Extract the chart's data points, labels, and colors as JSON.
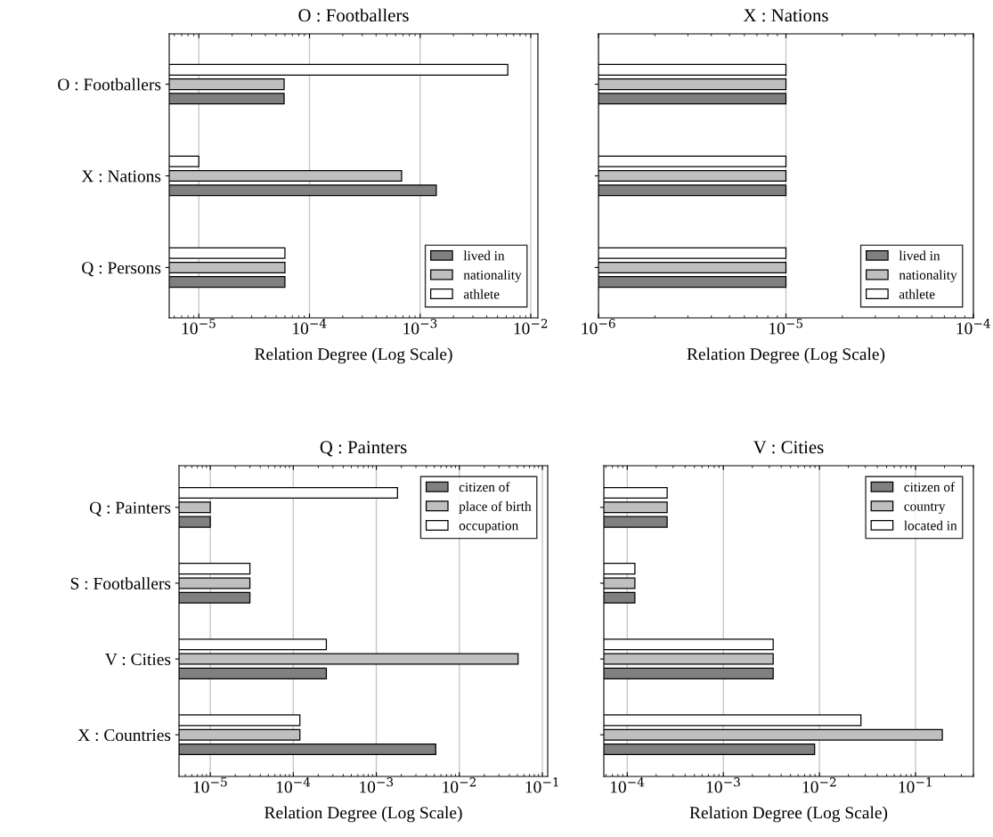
{
  "chart_data": [
    {
      "type": "bar",
      "orientation": "horizontal",
      "title": "O : Footballers",
      "xlabel": "Relation Degree (Log Scale)",
      "log": "x",
      "grid": "x",
      "legend": "bottom right",
      "categories": [
        "O : Footballers",
        "X : Nations",
        "Q : Persons"
      ],
      "xlim": [
        5.4e-06,
        0.0116
      ],
      "xticks": [
        {
          "value": 1e-05,
          "label": "10$^{−5}$"
        },
        {
          "value": 0.0001,
          "label": "10$^{−4}$"
        },
        {
          "value": 0.001,
          "label": "10$^{−3}$"
        },
        {
          "value": 0.01,
          "label": "10$^{−2}$"
        }
      ],
      "series": [
        {
          "name": "lived in",
          "color": "#808080",
          "values": [
            5.9e-05,
            0.0014,
            6e-05
          ]
        },
        {
          "name": "nationality",
          "color": "#bfbfbf",
          "values": [
            5.9e-05,
            0.00068,
            6e-05
          ]
        },
        {
          "name": "athlete",
          "color": "#ffffff",
          "values": [
            0.0062,
            1e-05,
            6e-05
          ]
        }
      ]
    },
    {
      "type": "bar",
      "orientation": "horizontal",
      "title": "X : Nations",
      "xlabel": "Relation Degree (Log Scale)",
      "log": "x",
      "grid": "x",
      "legend": "bottom right",
      "categories": [
        null,
        null,
        null
      ],
      "xlim": [
        1e-06,
        0.0001
      ],
      "xticks": [
        {
          "value": 1e-06,
          "label": "10$^{−6}$"
        },
        {
          "value": 1e-05,
          "label": "10$^{−5}$"
        },
        {
          "value": 0.0001,
          "label": "10$^{−4}$"
        }
      ],
      "series": [
        {
          "name": "lived in",
          "color": "#808080",
          "values": [
            1e-05,
            1e-05,
            1e-05
          ]
        },
        {
          "name": "nationality",
          "color": "#bfbfbf",
          "values": [
            1e-05,
            1e-05,
            1e-05
          ]
        },
        {
          "name": "athlete",
          "color": "#ffffff",
          "values": [
            1e-05,
            1e-05,
            1e-05
          ]
        }
      ]
    },
    {
      "type": "bar",
      "orientation": "horizontal",
      "title": "Q : Painters",
      "xlabel": "Relation Degree (Log Scale)",
      "log": "x",
      "grid": "x",
      "legend": "top right",
      "categories": [
        "Q : Painters",
        "S : Footballers",
        "V : Cities",
        "X : Countries"
      ],
      "xlim": [
        4.2e-06,
        0.116
      ],
      "xticks": [
        {
          "value": 1e-05,
          "label": "10$^{−5}$"
        },
        {
          "value": 0.0001,
          "label": "10$^{−4}$"
        },
        {
          "value": 0.001,
          "label": "10$^{−3}$"
        },
        {
          "value": 0.01,
          "label": "10$^{−2}$"
        },
        {
          "value": 0.1,
          "label": "10$^{−1}$"
        }
      ],
      "series": [
        {
          "name": "citizen of",
          "color": "#808080",
          "values": [
            1e-05,
            3e-05,
            0.00025,
            0.0052
          ]
        },
        {
          "name": "place of birth",
          "color": "#bfbfbf",
          "values": [
            1e-05,
            3e-05,
            0.051,
            0.00012
          ]
        },
        {
          "name": "occupation",
          "color": "#ffffff",
          "values": [
            0.0018,
            3e-05,
            0.00025,
            0.00012
          ]
        }
      ]
    },
    {
      "type": "bar",
      "orientation": "horizontal",
      "title": "V : Cities",
      "xlabel": "Relation Degree (Log Scale)",
      "log": "x",
      "grid": "x",
      "legend": "top right",
      "categories": [
        null,
        null,
        null,
        null
      ],
      "xlim": [
        5.7e-05,
        0.4
      ],
      "xticks": [
        {
          "value": 0.0001,
          "label": "10$^{−4}$"
        },
        {
          "value": 0.001,
          "label": "10$^{−3}$"
        },
        {
          "value": 0.01,
          "label": "10$^{−2}$"
        },
        {
          "value": 0.1,
          "label": "10$^{−1}$"
        }
      ],
      "series": [
        {
          "name": "citizen of",
          "color": "#808080",
          "values": [
            0.00026,
            0.00012,
            0.0033,
            0.0089
          ]
        },
        {
          "name": "country",
          "color": "#bfbfbf",
          "values": [
            0.00026,
            0.00012,
            0.0033,
            0.19
          ]
        },
        {
          "name": "located in",
          "color": "#ffffff",
          "values": [
            0.00026,
            0.00012,
            0.0033,
            0.027
          ]
        }
      ]
    }
  ]
}
